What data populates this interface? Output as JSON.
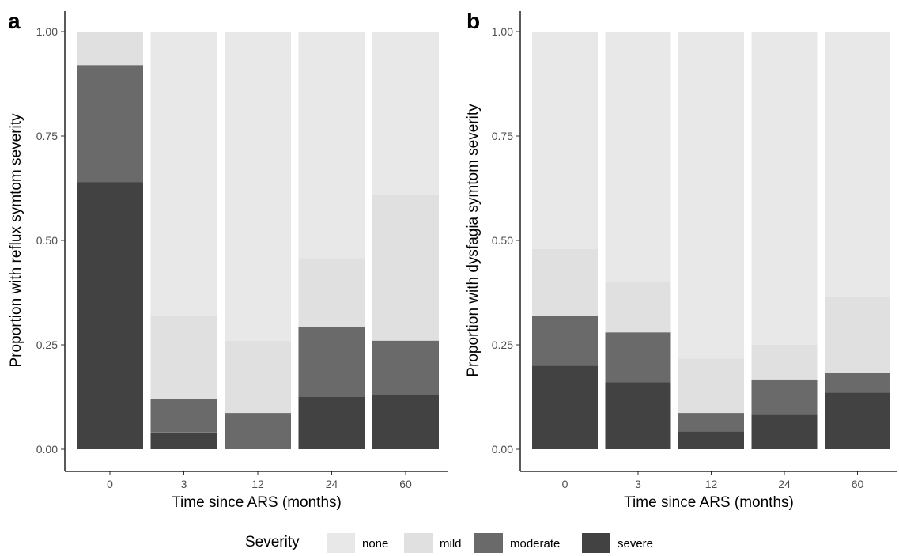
{
  "legend": {
    "title": "Severity",
    "items": [
      {
        "label": "none",
        "color": "#e8e8e8"
      },
      {
        "label": "mild",
        "color": "#dfe0df"
      },
      {
        "label": "moderate",
        "color": "#6a6a6a"
      },
      {
        "label": "severe",
        "color": "#424242"
      }
    ]
  },
  "chart_data": [
    {
      "type": "bar",
      "stacked": true,
      "panel_label": "a",
      "xlabel": "Time since ARS (months)",
      "ylabel": "Proportion with reflux symtom severity",
      "categories": [
        "0",
        "3",
        "12",
        "24",
        "60"
      ],
      "ylim": [
        0,
        1
      ],
      "yticks": [
        "0.00",
        "0.25",
        "0.50",
        "0.75",
        "1.00"
      ],
      "series": [
        {
          "name": "severe",
          "values": [
            0.64,
            0.04,
            0.0,
            0.125,
            0.13
          ]
        },
        {
          "name": "moderate",
          "values": [
            0.28,
            0.08,
            0.087,
            0.167,
            0.13
          ]
        },
        {
          "name": "mild",
          "values": [
            0.08,
            0.2,
            0.173,
            0.166,
            0.348
          ]
        },
        {
          "name": "none",
          "values": [
            0.0,
            0.68,
            0.74,
            0.542,
            0.392
          ]
        }
      ]
    },
    {
      "type": "bar",
      "stacked": true,
      "panel_label": "b",
      "xlabel": "Time since ARS (months)",
      "ylabel": "Proportion with dysfagia symtom severity",
      "categories": [
        "0",
        "3",
        "12",
        "24",
        "60"
      ],
      "ylim": [
        0,
        1
      ],
      "yticks": [
        "0.00",
        "0.25",
        "0.50",
        "0.75",
        "1.00"
      ],
      "series": [
        {
          "name": "severe",
          "values": [
            0.2,
            0.16,
            0.043,
            0.083,
            0.136
          ]
        },
        {
          "name": "moderate",
          "values": [
            0.12,
            0.12,
            0.044,
            0.084,
            0.046
          ]
        },
        {
          "name": "mild",
          "values": [
            0.16,
            0.12,
            0.13,
            0.083,
            0.182
          ]
        },
        {
          "name": "none",
          "values": [
            0.52,
            0.6,
            0.783,
            0.75,
            0.636
          ]
        }
      ]
    }
  ]
}
